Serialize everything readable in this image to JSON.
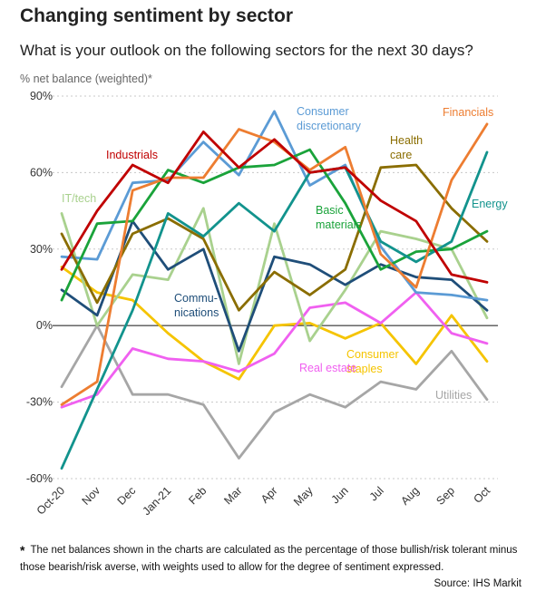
{
  "title": "Changing sentiment by sector",
  "subtitle": "What is your outlook on the following sectors for the next 30 days?",
  "unit": "% net balance (weighted)*",
  "footnote": {
    "marker": "*",
    "text": "The net balances shown in the charts are calculated as the percentage of those bullish/risk tolerant minus those bearish/risk averse, with weights used to allow for the degree of sentiment expressed."
  },
  "source": "Source: IHS Markit",
  "chart_data": {
    "type": "line",
    "categories": [
      "Oct-20",
      "Nov",
      "Dec",
      "Jan-21",
      "Feb",
      "Mar",
      "Apr",
      "May",
      "Jun",
      "Jul",
      "Aug",
      "Sep",
      "Oct"
    ],
    "y_ticks": [
      "90%",
      "60%",
      "30%",
      "0%",
      "-30%",
      "-60%"
    ],
    "ylim": [
      -60,
      90
    ],
    "grid": true,
    "series": [
      {
        "name": "Utilities",
        "color": "#a6a6a6",
        "label": "Utilities",
        "values": [
          -24,
          0,
          -27,
          -27,
          -31,
          -52,
          -34,
          -27,
          -32,
          -22,
          -25,
          -10,
          -29
        ]
      },
      {
        "name": "Consumer staples",
        "color": "#f5c400",
        "label": [
          "Consumer",
          "staples"
        ],
        "values": [
          23,
          13,
          10,
          -3,
          -14,
          -21,
          0,
          1,
          -5,
          1,
          -15,
          4,
          -14
        ]
      },
      {
        "name": "Real estate",
        "color": "#f060f0",
        "label": "Real estate",
        "values": [
          -32,
          -27,
          -9,
          -13,
          -14,
          -18,
          -11,
          7,
          9,
          1,
          13,
          -3,
          -7
        ]
      },
      {
        "name": "IT/tech",
        "color": "#a9d18e",
        "label": "IT/tech",
        "values": [
          44,
          0,
          20,
          18,
          46,
          -15,
          40,
          -6,
          14,
          37,
          34,
          30,
          3
        ]
      },
      {
        "name": "Communications",
        "color": "#1f4e79",
        "label": [
          "Commu-",
          "nications"
        ],
        "values": [
          14,
          4,
          41,
          22,
          30,
          -10,
          27,
          24,
          16,
          24,
          19,
          18,
          6
        ]
      },
      {
        "name": "Consumer discretionary",
        "color": "#5b9bd5",
        "label": [
          "Consumer",
          "discretionary"
        ],
        "values": [
          27,
          26,
          56,
          57,
          72,
          59,
          84,
          55,
          63,
          31,
          13,
          12,
          10
        ]
      },
      {
        "name": "Health care",
        "color": "#8a6d00",
        "label": [
          "Health",
          "care"
        ],
        "values": [
          36,
          9,
          36,
          42,
          34,
          6,
          21,
          12,
          22,
          62,
          63,
          46,
          33
        ]
      },
      {
        "name": "Basic materials",
        "color": "#1aa33a",
        "label": [
          "Basic",
          "materials"
        ],
        "values": [
          10,
          40,
          41,
          61,
          56,
          62,
          63,
          69,
          48,
          22,
          29,
          30,
          37
        ]
      },
      {
        "name": "Energy",
        "color": "#12938d",
        "label": "Energy",
        "values": [
          -56,
          -25,
          6,
          44,
          35,
          48,
          37,
          60,
          62,
          33,
          25,
          33,
          68
        ]
      },
      {
        "name": "Financials",
        "color": "#ed7d31",
        "label": "Financials",
        "values": [
          -31,
          -22,
          53,
          58,
          58,
          77,
          72,
          61,
          70,
          28,
          15,
          57,
          79
        ]
      },
      {
        "name": "Industrials",
        "color": "#c00000",
        "label": "Industrials",
        "values": [
          22,
          45,
          63,
          56,
          76,
          62,
          73,
          60,
          62,
          49,
          41,
          20,
          17
        ]
      }
    ]
  }
}
